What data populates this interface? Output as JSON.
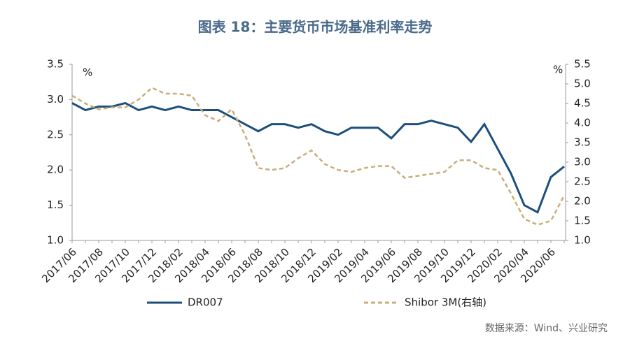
{
  "chart_data": {
    "type": "line",
    "title": "图表 18：主要货币市场基准利率走势",
    "y_unit": "%",
    "y2_unit": "%",
    "source": "数据来源：Wind、兴业研究",
    "categories": [
      "2017/06",
      null,
      "2017/08",
      null,
      "2017/10",
      null,
      "2017/12",
      null,
      "2018/02",
      null,
      "2018/04",
      null,
      "2018/06",
      null,
      "2018/08",
      null,
      "2018/10",
      null,
      "2018/12",
      null,
      "2019/02",
      null,
      "2019/04",
      null,
      "2019/06",
      null,
      "2019/08",
      null,
      "2019/10",
      null,
      "2019/12",
      null,
      "2020/02",
      null,
      "2020/04",
      null,
      "2020/06",
      null
    ],
    "series": [
      {
        "name": "DR007",
        "color": "#1c4f7c",
        "dash": false,
        "axis": "y",
        "values": [
          2.95,
          2.85,
          2.9,
          2.9,
          2.95,
          2.85,
          2.9,
          2.85,
          2.9,
          2.85,
          2.85,
          2.85,
          2.75,
          2.65,
          2.55,
          2.65,
          2.65,
          2.6,
          2.65,
          2.55,
          2.5,
          2.6,
          2.6,
          2.6,
          2.45,
          2.65,
          2.65,
          2.7,
          2.65,
          2.6,
          2.4,
          2.65,
          2.3,
          1.95,
          1.5,
          1.4,
          1.9,
          2.05
        ]
      },
      {
        "name": "Shibor 3M(右轴)",
        "color": "#c9ae7a",
        "dash": true,
        "axis": "y2",
        "values": [
          4.7,
          4.5,
          4.35,
          4.4,
          4.4,
          4.6,
          4.9,
          4.75,
          4.75,
          4.7,
          4.2,
          4.05,
          4.35,
          3.7,
          2.85,
          2.8,
          2.85,
          3.1,
          3.3,
          2.95,
          2.8,
          2.75,
          2.85,
          2.9,
          2.9,
          2.6,
          2.65,
          2.7,
          2.75,
          3.05,
          3.05,
          2.85,
          2.8,
          2.2,
          1.55,
          1.4,
          1.5,
          2.15
        ]
      }
    ],
    "ylim": [
      1.0,
      3.5
    ],
    "yticks": [
      {
        "value": 1.0,
        "label": "1.0"
      },
      1.5,
      {
        "value": 2.0,
        "label": "2.0"
      },
      2.5,
      {
        "value": 3.0,
        "label": "3.0"
      },
      3.5
    ],
    "y2lim": [
      1.0,
      5.5
    ],
    "y2ticks": [
      {
        "value": 1.0,
        "label": "1.0"
      },
      1.5,
      {
        "value": 2.0,
        "label": "2.0"
      },
      2.5,
      {
        "value": 3.0,
        "label": "3.0"
      },
      3.5,
      {
        "value": 4.0,
        "label": "4.0"
      },
      4.5,
      {
        "value": 5.0,
        "label": "5.0"
      },
      5.5
    ]
  }
}
